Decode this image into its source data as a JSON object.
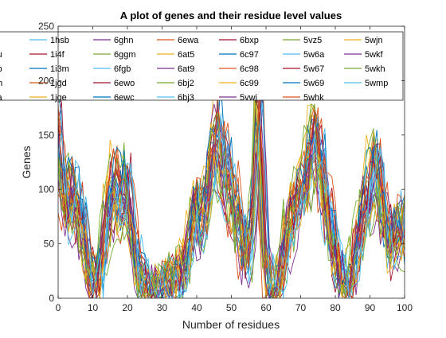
{
  "chart_data": {
    "type": "line",
    "title": "A plot of genes and their residue level values",
    "xlabel": "Number of residues",
    "ylabel": "Genes",
    "xlim": [
      0,
      100
    ],
    "ylim": [
      0,
      250
    ],
    "xticks": [
      0,
      10,
      20,
      30,
      40,
      50,
      60,
      70,
      80,
      90,
      100
    ],
    "yticks": [
      0,
      50,
      100,
      150,
      200,
      250
    ],
    "xtick_labels": [
      "0",
      "10",
      "20",
      "30",
      "40",
      "50",
      "60",
      "70",
      "80",
      "90",
      "100"
    ],
    "ytick_labels": [
      "0",
      "50",
      "100",
      "150",
      "200",
      "250"
    ],
    "grid": false,
    "legend_location": "top, overlapping plot, clipped on the left",
    "legend_columns": 7,
    "legend_entries": [
      "x",
      "ku",
      "cp",
      "nh",
      "sa",
      "1hsb",
      "1i4f",
      "1i3m",
      "1jgd",
      "1jge",
      "6ghn",
      "6ggm",
      "6fgb",
      "6ewo",
      "6ewc",
      "6ewa",
      "6at5",
      "6at9",
      "6bj2",
      "6bj3",
      "6bxp",
      "6c97",
      "6c98",
      "6c99",
      "5vwj",
      "5vz5",
      "5w6a",
      "5w67",
      "5w69",
      "5whk",
      "5wjn",
      "5wkf",
      "5wkh",
      "5wmp"
    ],
    "colors": [
      "#0072BD",
      "#D95319",
      "#EDB120",
      "#7E2F8E",
      "#77AC30",
      "#4DBEEE",
      "#A2142F"
    ],
    "series_profile_note_x": [
      0,
      2,
      4,
      6,
      8,
      10,
      12,
      14,
      16,
      18,
      20,
      22,
      24,
      26,
      28,
      30,
      32,
      34,
      36,
      38,
      40,
      42,
      44,
      46,
      48,
      50,
      52,
      54,
      56,
      58,
      60,
      62,
      64,
      66,
      68,
      70,
      72,
      74,
      76,
      78,
      80,
      82,
      84,
      86,
      88,
      90,
      92,
      94,
      96,
      98,
      100
    ],
    "series_profile_y": [
      150,
      80,
      100,
      80,
      45,
      10,
      20,
      70,
      100,
      90,
      105,
      45,
      15,
      5,
      5,
      10,
      15,
      15,
      25,
      50,
      85,
      65,
      110,
      150,
      120,
      95,
      75,
      35,
      60,
      180,
      25,
      5,
      15,
      60,
      75,
      95,
      115,
      150,
      115,
      75,
      40,
      15,
      15,
      40,
      70,
      105,
      120,
      75,
      50,
      65,
      60
    ]
  }
}
